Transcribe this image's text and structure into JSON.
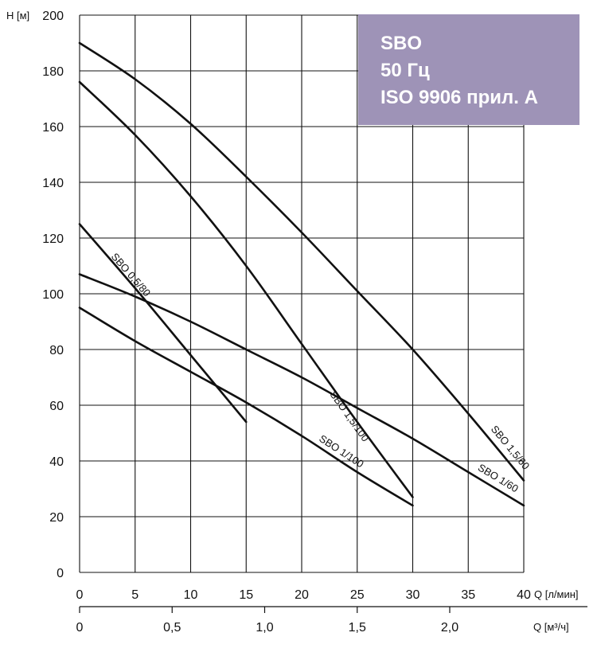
{
  "info_box": {
    "line1": "SBO",
    "line2": "50 Гц",
    "line3": "ISO 9906 прил. А"
  },
  "chart_data": {
    "type": "line",
    "ylabel": "H [м]",
    "xlabel": "Q [л/мин]",
    "x2label": "Q [м³/ч]",
    "ylim": [
      0,
      200
    ],
    "xlim": [
      0,
      40
    ],
    "yticks": [
      0,
      20,
      40,
      60,
      80,
      100,
      120,
      140,
      160,
      180,
      200
    ],
    "xticks": [
      0,
      5,
      10,
      15,
      20,
      25,
      30,
      35,
      40
    ],
    "x2ticks": [
      {
        "value": 0,
        "label": "0"
      },
      {
        "value": 0.5,
        "label": "0,5"
      },
      {
        "value": 1.0,
        "label": "1,0"
      },
      {
        "value": 1.5,
        "label": "1,5"
      },
      {
        "value": 2.0,
        "label": "2,0"
      }
    ],
    "grid": true,
    "series": [
      {
        "name": "SBO 0,5/80",
        "x": [
          0,
          5,
          10,
          15
        ],
        "y": [
          125,
          102,
          78,
          54
        ]
      },
      {
        "name": "SBO 1/100",
        "x": [
          0,
          5,
          10,
          15,
          20,
          25,
          30
        ],
        "y": [
          95,
          83,
          72,
          61,
          49,
          36,
          24
        ]
      },
      {
        "name": "SBO 1/60",
        "x": [
          0,
          5,
          10,
          15,
          20,
          25,
          30,
          35,
          40
        ],
        "y": [
          107,
          99,
          90,
          80,
          70,
          59,
          48,
          36,
          24
        ]
      },
      {
        "name": "SBO 1,5/100",
        "x": [
          0,
          5,
          10,
          15,
          20,
          25,
          30
        ],
        "y": [
          176,
          157,
          135,
          110,
          82,
          54,
          27
        ]
      },
      {
        "name": "SBO 1,5/60",
        "x": [
          0,
          5,
          10,
          15,
          20,
          25,
          30,
          35,
          40
        ],
        "y": [
          190,
          177,
          161,
          142,
          122,
          101,
          80,
          57,
          33
        ]
      }
    ]
  }
}
